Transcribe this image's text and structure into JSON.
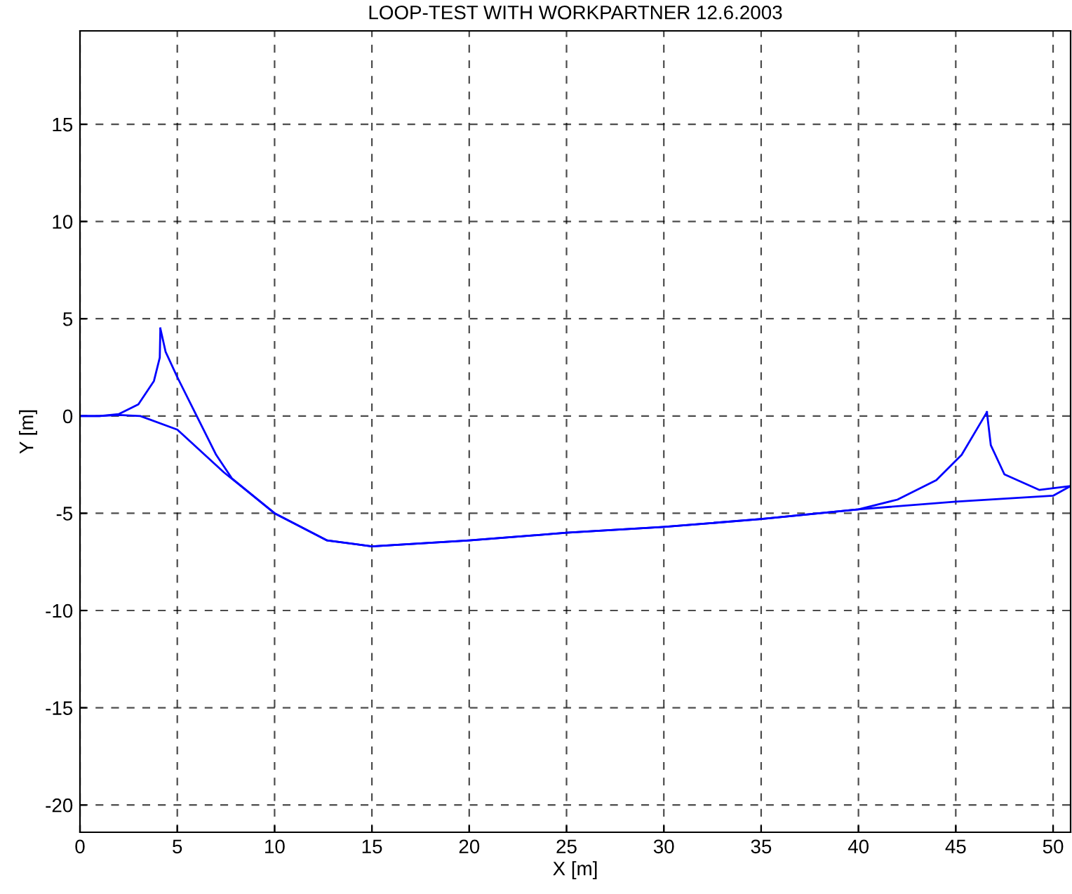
{
  "chart_data": {
    "type": "line",
    "title": "LOOP-TEST WITH WORKPARTNER 12.6.2003",
    "xlabel": "X [m]",
    "ylabel": "Y [m]",
    "series": [
      {
        "color": "#0000ff",
        "x": [
          0,
          1,
          2,
          3,
          3.8,
          4.1,
          4.13
        ],
        "values": [
          0,
          0,
          0.1,
          0.6,
          1.8,
          3.0,
          4.5
        ]
      },
      {
        "color": "#0000ff",
        "x": [
          4.13,
          4.4,
          5,
          6,
          7,
          7.8,
          10,
          12.7,
          15,
          20,
          25,
          30,
          35,
          40,
          42,
          44,
          45.3,
          46.6
        ],
        "values": [
          4.5,
          3.3,
          2,
          0,
          -2,
          -3.2,
          -5,
          -6.4,
          -6.7,
          -6.4,
          -6,
          -5.7,
          -5.3,
          -4.8,
          -4.3,
          -3.3,
          -2,
          0.2
        ]
      },
      {
        "color": "#0000ff",
        "x": [
          46.6,
          46.8,
          47.5,
          49.3,
          50.9
        ],
        "values": [
          0.2,
          -1.5,
          -3,
          -3.8,
          -3.6
        ]
      },
      {
        "color": "#0000ff",
        "x": [
          0,
          1,
          2,
          3.1,
          5,
          7.4,
          10,
          12.7,
          15,
          20,
          25,
          30,
          35,
          40,
          45,
          50,
          50.9
        ],
        "values": [
          0,
          0,
          0.05,
          0,
          -0.7,
          -2.9,
          -5,
          -6.4,
          -6.7,
          -6.4,
          -6,
          -5.7,
          -5.3,
          -4.8,
          -4.4,
          -4.1,
          -3.6
        ]
      }
    ],
    "xlim": [
      0,
      50.9
    ],
    "ylim": [
      -21.4,
      19.8
    ],
    "xticks": [
      0,
      5,
      10,
      15,
      20,
      25,
      30,
      35,
      40,
      45,
      50
    ],
    "yticks": [
      -20,
      -15,
      -10,
      -5,
      0,
      5,
      10,
      15
    ],
    "grid": true,
    "line_style": "solid",
    "marker": "none"
  }
}
